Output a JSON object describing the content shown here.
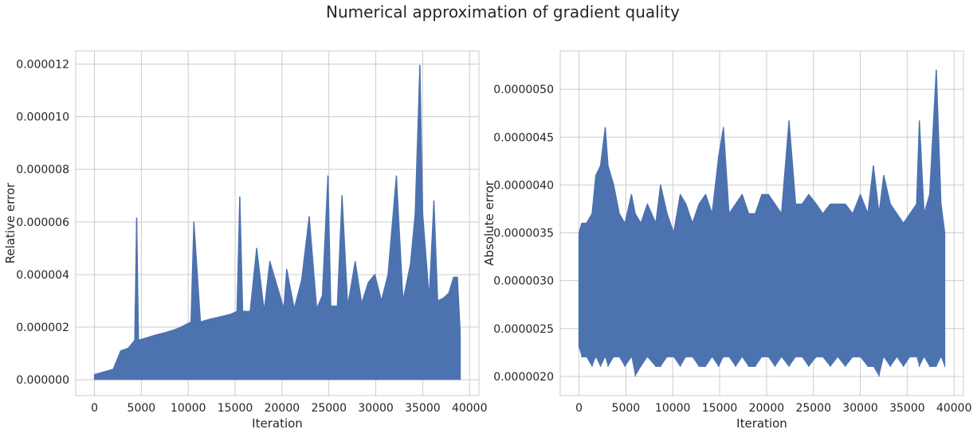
{
  "figure": {
    "title": "Numerical approximation of gradient quality"
  },
  "colors": {
    "series": "#4c72b0",
    "grid": "#cccccc",
    "text": "#262626"
  },
  "chart_data": [
    {
      "type": "line",
      "title": "",
      "xlabel": "Iteration",
      "ylabel": "Relative error",
      "xlim": [
        -2000,
        41000
      ],
      "ylim": [
        -6e-07,
        1.25e-05
      ],
      "xticks": [
        0,
        5000,
        10000,
        15000,
        20000,
        25000,
        30000,
        35000,
        40000
      ],
      "xtick_labels": [
        "0",
        "5000",
        "10000",
        "15000",
        "20000",
        "25000",
        "30000",
        "35000",
        "40000"
      ],
      "yticks": [
        0,
        2e-06,
        4e-06,
        6e-06,
        8e-06,
        1e-05,
        1.2e-05
      ],
      "ytick_labels": [
        "0.000000",
        "0.000002",
        "0.000004",
        "0.000006",
        "0.000008",
        "0.000010",
        "0.000012"
      ],
      "grid": true,
      "series": [
        {
          "x": [
            0,
            1000,
            2000,
            2800,
            3600,
            4300,
            4500,
            4700,
            5600,
            6500,
            7600,
            8500,
            9200,
            10300,
            10600,
            11300,
            12300,
            13500,
            14600,
            15200,
            15500,
            15800,
            16600,
            17300,
            18100,
            18700,
            20200,
            20500,
            21300,
            22100,
            22900,
            23700,
            24300,
            24900,
            25200,
            25900,
            26400,
            27000,
            27800,
            28500,
            29200,
            29900,
            30600,
            31300,
            32200,
            32900,
            33700,
            34200,
            34700,
            35000,
            35700,
            36200,
            36600,
            37200,
            37800,
            38300,
            38700,
            39000
          ],
          "y_upper": [
            2e-07,
            3e-07,
            4e-07,
            1.1e-06,
            1.2e-06,
            1.5e-06,
            6.15e-06,
            1.5e-06,
            1.6e-06,
            1.7e-06,
            1.8e-06,
            1.9e-06,
            2e-06,
            2.2e-06,
            6e-06,
            2.2e-06,
            2.3e-06,
            2.4e-06,
            2.5e-06,
            2.6e-06,
            6.95e-06,
            2.6e-06,
            2.6e-06,
            5e-06,
            2.6e-06,
            4.5e-06,
            2.7e-06,
            4.2e-06,
            2.7e-06,
            3.8e-06,
            6.2e-06,
            2.7e-06,
            3.2e-06,
            7.75e-06,
            2.8e-06,
            2.8e-06,
            7e-06,
            2.8e-06,
            4.5e-06,
            2.9e-06,
            3.7e-06,
            4e-06,
            3e-06,
            4e-06,
            7.75e-06,
            3e-06,
            4.4e-06,
            6.3e-06,
            1.195e-05,
            6.3e-06,
            3.1e-06,
            6.8e-06,
            3e-06,
            3.1e-06,
            3.3e-06,
            3.9e-06,
            3.9e-06,
            1.8e-06
          ],
          "y_lower": [
            0,
            0,
            0,
            0,
            0,
            0,
            0,
            0,
            0,
            0,
            0,
            0,
            0,
            0,
            0,
            0,
            0,
            0,
            0,
            0,
            0,
            0,
            0,
            0,
            0,
            0,
            0,
            0,
            0,
            0,
            0,
            0,
            0,
            0,
            0,
            0,
            0,
            0,
            0,
            0,
            0,
            0,
            0,
            0,
            0,
            0,
            0,
            0,
            0,
            0,
            0,
            0,
            0,
            0,
            0,
            0,
            0,
            0
          ]
        }
      ]
    },
    {
      "type": "line",
      "title": "",
      "xlabel": "Iteration",
      "ylabel": "Absolute error",
      "xlim": [
        -2000,
        41000
      ],
      "ylim": [
        1.8e-06,
        5.4e-06
      ],
      "xticks": [
        0,
        5000,
        10000,
        15000,
        20000,
        25000,
        30000,
        35000,
        40000
      ],
      "xtick_labels": [
        "0",
        "5000",
        "10000",
        "15000",
        "20000",
        "25000",
        "30000",
        "35000",
        "40000"
      ],
      "yticks": [
        2e-06,
        2.5e-06,
        3e-06,
        3.5e-06,
        4e-06,
        4.5e-06,
        5e-06
      ],
      "ytick_labels": [
        "0.0000020",
        "0.0000025",
        "0.0000030",
        "0.0000035",
        "0.0000040",
        "0.0000045",
        "0.0000050"
      ],
      "grid": true,
      "series": [
        {
          "x": [
            0,
            300,
            800,
            1400,
            1800,
            2300,
            2800,
            3100,
            3700,
            4300,
            4900,
            5600,
            6000,
            6600,
            7300,
            8200,
            8700,
            9400,
            10100,
            10800,
            11400,
            12100,
            12800,
            13500,
            14200,
            14900,
            15400,
            16000,
            16700,
            17400,
            18100,
            18800,
            19500,
            20200,
            20900,
            21600,
            22400,
            23100,
            23800,
            24500,
            25300,
            26000,
            26800,
            27600,
            28400,
            29200,
            30000,
            30800,
            31400,
            32000,
            32500,
            33200,
            33900,
            34600,
            35300,
            36000,
            36300,
            36800,
            37400,
            38100,
            38600,
            39000
          ],
          "y_upper": [
            3.5e-06,
            3.6e-06,
            3.6e-06,
            3.7e-06,
            4.1e-06,
            4.2e-06,
            4.6e-06,
            4.2e-06,
            4e-06,
            3.7e-06,
            3.6e-06,
            3.9e-06,
            3.7e-06,
            3.6e-06,
            3.8e-06,
            3.6e-06,
            4e-06,
            3.7e-06,
            3.5e-06,
            3.9e-06,
            3.8e-06,
            3.6e-06,
            3.8e-06,
            3.9e-06,
            3.7e-06,
            4.3e-06,
            4.6e-06,
            3.7e-06,
            3.8e-06,
            3.9e-06,
            3.7e-06,
            3.7e-06,
            3.9e-06,
            3.9e-06,
            3.8e-06,
            3.7e-06,
            4.67e-06,
            3.8e-06,
            3.8e-06,
            3.9e-06,
            3.8e-06,
            3.7e-06,
            3.8e-06,
            3.8e-06,
            3.8e-06,
            3.7e-06,
            3.9e-06,
            3.7e-06,
            4.2e-06,
            3.7e-06,
            4.1e-06,
            3.8e-06,
            3.7e-06,
            3.6e-06,
            3.7e-06,
            3.8e-06,
            4.67e-06,
            3.7e-06,
            3.9e-06,
            5.2e-06,
            3.8e-06,
            3.5e-06
          ],
          "y_lower": [
            2.3e-06,
            2.2e-06,
            2.2e-06,
            2.1e-06,
            2.2e-06,
            2.1e-06,
            2.2e-06,
            2.1e-06,
            2.2e-06,
            2.2e-06,
            2.1e-06,
            2.2e-06,
            2e-06,
            2.1e-06,
            2.2e-06,
            2.1e-06,
            2.1e-06,
            2.2e-06,
            2.2e-06,
            2.1e-06,
            2.2e-06,
            2.2e-06,
            2.1e-06,
            2.1e-06,
            2.2e-06,
            2.1e-06,
            2.2e-06,
            2.2e-06,
            2.1e-06,
            2.2e-06,
            2.1e-06,
            2.1e-06,
            2.2e-06,
            2.2e-06,
            2.1e-06,
            2.2e-06,
            2.1e-06,
            2.2e-06,
            2.2e-06,
            2.1e-06,
            2.2e-06,
            2.2e-06,
            2.1e-06,
            2.2e-06,
            2.1e-06,
            2.2e-06,
            2.2e-06,
            2.1e-06,
            2.1e-06,
            2e-06,
            2.2e-06,
            2.1e-06,
            2.2e-06,
            2.1e-06,
            2.2e-06,
            2.2e-06,
            2.1e-06,
            2.2e-06,
            2.1e-06,
            2.1e-06,
            2.2e-06,
            2.1e-06
          ]
        }
      ]
    }
  ]
}
